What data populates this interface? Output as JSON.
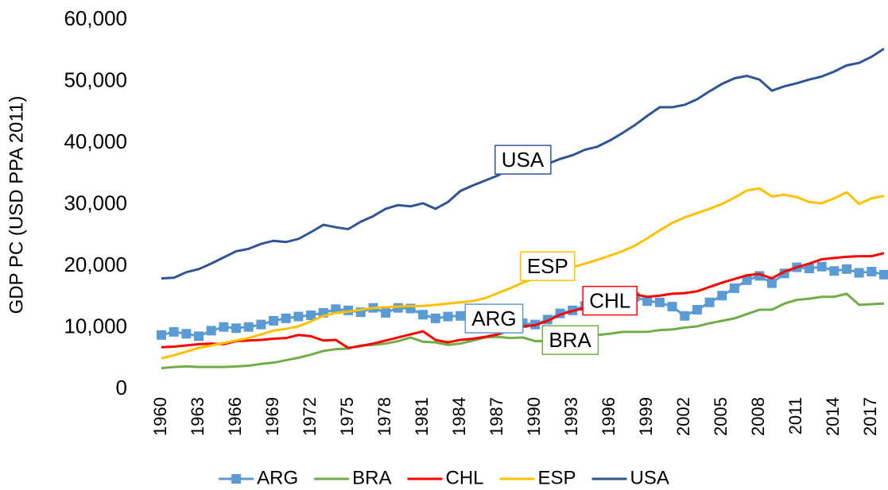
{
  "chart_data": {
    "type": "line",
    "y_label": "GDP PC (USD PPA 2011)",
    "x": [
      1960,
      1961,
      1962,
      1963,
      1964,
      1965,
      1966,
      1967,
      1968,
      1969,
      1970,
      1971,
      1972,
      1973,
      1974,
      1975,
      1976,
      1977,
      1978,
      1979,
      1980,
      1981,
      1982,
      1983,
      1984,
      1985,
      1986,
      1987,
      1988,
      1989,
      1990,
      1991,
      1992,
      1993,
      1994,
      1995,
      1996,
      1997,
      1998,
      1999,
      2000,
      2001,
      2002,
      2003,
      2004,
      2005,
      2006,
      2007,
      2008,
      2009,
      2010,
      2011,
      2012,
      2013,
      2014,
      2015,
      2016,
      2017,
      2018
    ],
    "xlim": [
      1960,
      2018
    ],
    "xticks": [
      1960,
      1963,
      1966,
      1969,
      1972,
      1975,
      1978,
      1981,
      1984,
      1987,
      1990,
      1993,
      1996,
      1999,
      2002,
      2005,
      2008,
      2011,
      2014,
      2017
    ],
    "ylim": [
      0,
      60000
    ],
    "yticks": [
      0,
      {
        "value": 10000,
        "label": "10,000"
      },
      {
        "value": 20000,
        "label": "20,000"
      },
      {
        "value": 30000,
        "label": "30,000"
      },
      {
        "value": 40000,
        "label": "40,000"
      },
      {
        "value": 50000,
        "label": "50,000"
      },
      {
        "value": 60000,
        "label": "60,000"
      }
    ],
    "grid": false,
    "legend": "bottom",
    "series": [
      {
        "name": "ARG",
        "color": "#5b9bd5",
        "marker": "square",
        "values": [
          8800,
          9300,
          9000,
          8600,
          9500,
          10100,
          9900,
          10100,
          10500,
          11100,
          11500,
          11800,
          12000,
          12400,
          13000,
          12800,
          12500,
          13200,
          12400,
          13200,
          13100,
          12100,
          11500,
          11800,
          11900,
          11000,
          11700,
          11900,
          11600,
          10700,
          10500,
          11300,
          12300,
          12800,
          13500,
          13000,
          13600,
          14600,
          15000,
          14300,
          14100,
          13400,
          11900,
          12900,
          14100,
          15200,
          16400,
          17700,
          18400,
          17200,
          18800,
          19800,
          19600,
          19900,
          19200,
          19500,
          18900,
          19100,
          18600
        ]
      },
      {
        "name": "BRA",
        "color": "#70ad47",
        "values": [
          3400,
          3600,
          3700,
          3600,
          3600,
          3600,
          3700,
          3800,
          4100,
          4300,
          4700,
          5100,
          5600,
          6200,
          6500,
          6600,
          7100,
          7200,
          7400,
          7800,
          8400,
          7700,
          7600,
          7200,
          7400,
          7900,
          8400,
          8500,
          8300,
          8400,
          7800,
          7800,
          7700,
          7900,
          8300,
          8800,
          9000,
          9300,
          9300,
          9300,
          9600,
          9700,
          10000,
          10200,
          10700,
          11100,
          11500,
          12200,
          12900,
          12900,
          13900,
          14500,
          14700,
          15000,
          15000,
          15500,
          13700,
          13800,
          13900
        ]
      },
      {
        "name": "CHL",
        "color": "#ff0000",
        "values": [
          6800,
          6900,
          7100,
          7300,
          7400,
          7300,
          7800,
          7900,
          8000,
          8200,
          8300,
          8800,
          8600,
          7900,
          8000,
          6700,
          7000,
          7400,
          7900,
          8400,
          8900,
          9400,
          8000,
          7600,
          8000,
          8200,
          8500,
          8900,
          9600,
          10200,
          10400,
          11100,
          12100,
          12700,
          13200,
          14400,
          15200,
          15900,
          15400,
          15000,
          15200,
          15500,
          15600,
          15900,
          16600,
          17300,
          17900,
          18500,
          18700,
          18000,
          19100,
          19800,
          20400,
          21100,
          21300,
          21500,
          21600,
          21600,
          22100
        ]
      },
      {
        "name": "ESP",
        "color": "#ffc000",
        "values": [
          5000,
          5500,
          6100,
          6700,
          7100,
          7500,
          7900,
          8300,
          8900,
          9500,
          9800,
          10200,
          11000,
          11900,
          12400,
          12600,
          12900,
          13200,
          13300,
          13400,
          13500,
          13500,
          13700,
          13900,
          14100,
          14300,
          14800,
          15600,
          16400,
          17300,
          18000,
          18700,
          19300,
          19800,
          20400,
          21000,
          21700,
          22400,
          23300,
          24500,
          25800,
          27000,
          27900,
          28600,
          29300,
          30100,
          31100,
          32300,
          32600,
          31300,
          31600,
          31200,
          30400,
          30200,
          31000,
          32000,
          30100,
          31000,
          31400
        ]
      },
      {
        "name": "USA",
        "color": "#2f5597",
        "values": [
          18000,
          18100,
          19000,
          19500,
          20400,
          21400,
          22400,
          22800,
          23600,
          24100,
          23900,
          24400,
          25500,
          26700,
          26300,
          26000,
          27200,
          28100,
          29300,
          29900,
          29700,
          30200,
          29300,
          30400,
          32200,
          33100,
          33900,
          34700,
          35800,
          36700,
          37100,
          36600,
          37400,
          38000,
          38900,
          39400,
          40400,
          41600,
          42900,
          44400,
          45800,
          45800,
          46200,
          47100,
          48400,
          49600,
          50500,
          50900,
          50300,
          48500,
          49200,
          49700,
          50300,
          50800,
          51600,
          52600,
          53000,
          54000,
          55300
        ]
      }
    ],
    "annotations": [
      {
        "text": "USA",
        "x": 1989,
        "y": 37000,
        "color": "#2f5597"
      },
      {
        "text": "ESP",
        "x": 1991,
        "y": 19700,
        "color": "#ffc000"
      },
      {
        "text": "CHL",
        "x": 1996,
        "y": 14100,
        "color": "#ff0000"
      },
      {
        "text": "ARG",
        "x": 1986.7,
        "y": 11200,
        "color": "#5b9bd5"
      },
      {
        "text": "BRA",
        "x": 1992.8,
        "y": 7700,
        "color": "#70ad47"
      }
    ]
  }
}
